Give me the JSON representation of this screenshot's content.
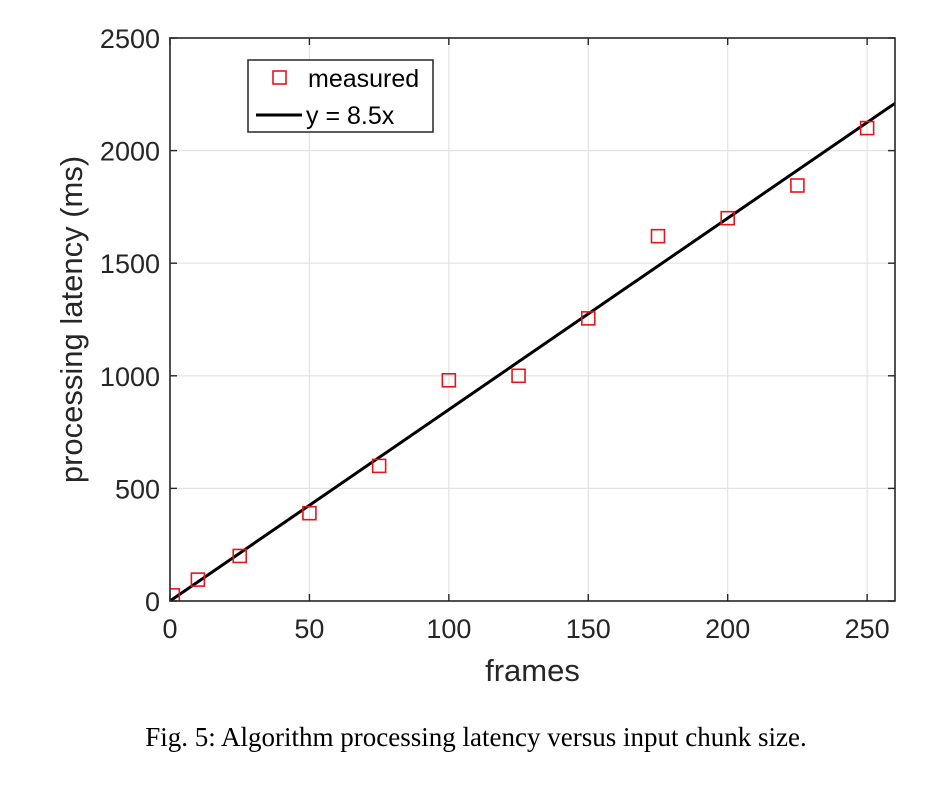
{
  "caption": "Fig. 5: Algorithm processing latency versus input chunk size.",
  "chart_data": {
    "type": "scatter",
    "xlabel": "frames",
    "ylabel": "processing latency (ms)",
    "xlim": [
      0,
      260
    ],
    "ylim": [
      0,
      2500
    ],
    "xticks": [
      0,
      50,
      100,
      150,
      200,
      250
    ],
    "yticks": [
      0,
      500,
      1000,
      1500,
      2000,
      2500
    ],
    "grid": true,
    "legend_position": "top-left",
    "series": [
      {
        "name": "measured",
        "kind": "scatter",
        "marker": "square",
        "color": "#e8141c",
        "x": [
          1,
          10,
          25,
          50,
          75,
          100,
          125,
          150,
          175,
          200,
          225,
          250
        ],
        "y": [
          25,
          95,
          200,
          390,
          600,
          980,
          1000,
          1255,
          1620,
          1700,
          1845,
          2100
        ]
      },
      {
        "name": "y = 8.5x",
        "kind": "line",
        "slope": 8.5,
        "color": "#000000",
        "x": [
          0,
          260
        ],
        "y": [
          0,
          2210
        ]
      }
    ]
  }
}
